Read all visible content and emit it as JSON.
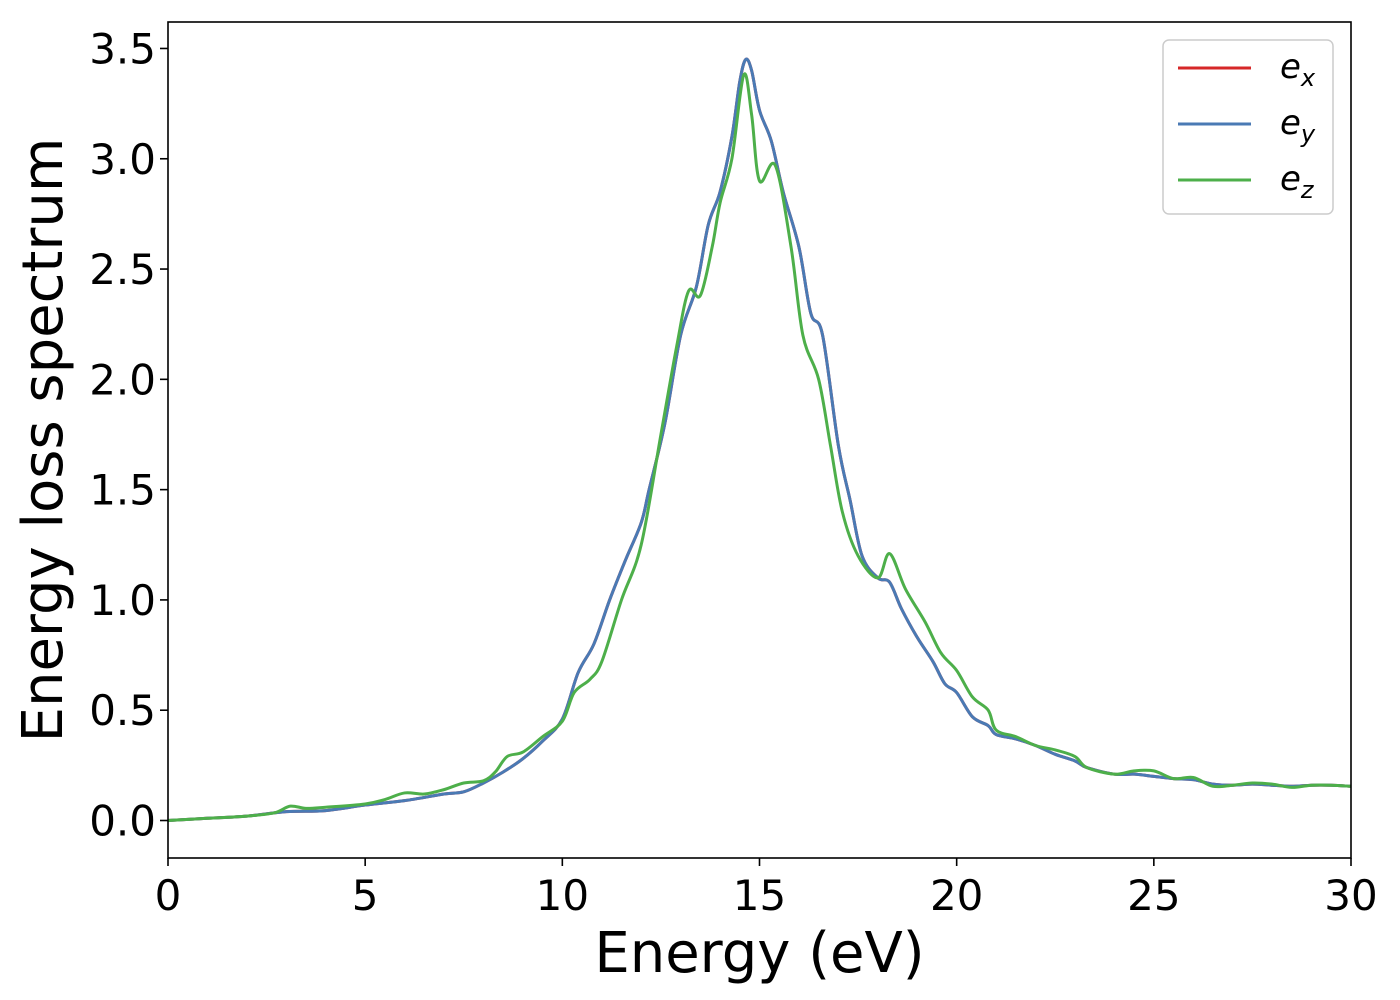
{
  "chart_data": {
    "type": "line",
    "title": "",
    "xlabel": "Energy (eV)",
    "ylabel": "Energy loss spectrum",
    "xlim": [
      0,
      30
    ],
    "ylim": [
      -0.17,
      3.62
    ],
    "xticks": [
      0,
      5,
      10,
      15,
      20,
      25,
      30
    ],
    "xtick_labels": [
      "0",
      "5",
      "10",
      "15",
      "20",
      "25",
      "30"
    ],
    "yticks": [
      0.0,
      0.5,
      1.0,
      1.5,
      2.0,
      2.5,
      3.0,
      3.5
    ],
    "ytick_labels": [
      "0.0",
      "0.5",
      "1.0",
      "1.5",
      "2.0",
      "2.5",
      "3.0",
      "3.5"
    ],
    "grid": false,
    "legend_position": "top-right",
    "series": [
      {
        "name": "e_x",
        "label_base": "e",
        "label_sub": "x",
        "color": "#d62728",
        "points": [
          [
            0,
            0
          ],
          [
            1,
            0.01
          ],
          [
            2,
            0.02
          ],
          [
            3,
            0.04
          ],
          [
            4,
            0.045
          ],
          [
            5,
            0.07
          ],
          [
            6,
            0.09
          ],
          [
            7,
            0.12
          ],
          [
            7.5,
            0.13
          ],
          [
            8,
            0.17
          ],
          [
            8.5,
            0.22
          ],
          [
            9,
            0.28
          ],
          [
            9.5,
            0.36
          ],
          [
            10,
            0.46
          ],
          [
            10.4,
            0.67
          ],
          [
            10.8,
            0.8
          ],
          [
            11.2,
            1.0
          ],
          [
            11.6,
            1.18
          ],
          [
            12,
            1.35
          ],
          [
            12.2,
            1.5
          ],
          [
            12.6,
            1.8
          ],
          [
            13,
            2.2
          ],
          [
            13.4,
            2.42
          ],
          [
            13.7,
            2.7
          ],
          [
            14,
            2.85
          ],
          [
            14.3,
            3.1
          ],
          [
            14.5,
            3.35
          ],
          [
            14.65,
            3.45
          ],
          [
            14.8,
            3.4
          ],
          [
            15,
            3.22
          ],
          [
            15.3,
            3.08
          ],
          [
            15.6,
            2.85
          ],
          [
            16,
            2.6
          ],
          [
            16.3,
            2.3
          ],
          [
            16.6,
            2.2
          ],
          [
            17,
            1.7
          ],
          [
            17.3,
            1.45
          ],
          [
            17.6,
            1.2
          ],
          [
            18,
            1.1
          ],
          [
            18.3,
            1.08
          ],
          [
            18.6,
            0.96
          ],
          [
            19,
            0.83
          ],
          [
            19.4,
            0.72
          ],
          [
            19.7,
            0.62
          ],
          [
            20,
            0.58
          ],
          [
            20.4,
            0.47
          ],
          [
            20.8,
            0.43
          ],
          [
            21,
            0.39
          ],
          [
            21.5,
            0.37
          ],
          [
            22,
            0.34
          ],
          [
            22.5,
            0.3
          ],
          [
            23,
            0.27
          ],
          [
            23.3,
            0.24
          ],
          [
            24,
            0.21
          ],
          [
            24.5,
            0.21
          ],
          [
            25,
            0.2
          ],
          [
            25.5,
            0.19
          ],
          [
            26,
            0.185
          ],
          [
            26.5,
            0.165
          ],
          [
            27,
            0.16
          ],
          [
            27.5,
            0.165
          ],
          [
            28,
            0.16
          ],
          [
            28.5,
            0.155
          ],
          [
            29,
            0.16
          ],
          [
            29.5,
            0.16
          ],
          [
            30,
            0.155
          ]
        ]
      },
      {
        "name": "e_y",
        "label_base": "e",
        "label_sub": "y",
        "color": "#4a7ab4",
        "points": [
          [
            0,
            0
          ],
          [
            1,
            0.01
          ],
          [
            2,
            0.02
          ],
          [
            3,
            0.04
          ],
          [
            4,
            0.045
          ],
          [
            5,
            0.07
          ],
          [
            6,
            0.09
          ],
          [
            7,
            0.12
          ],
          [
            7.5,
            0.13
          ],
          [
            8,
            0.17
          ],
          [
            8.5,
            0.22
          ],
          [
            9,
            0.28
          ],
          [
            9.5,
            0.36
          ],
          [
            10,
            0.46
          ],
          [
            10.4,
            0.67
          ],
          [
            10.8,
            0.8
          ],
          [
            11.2,
            1.0
          ],
          [
            11.6,
            1.18
          ],
          [
            12,
            1.35
          ],
          [
            12.2,
            1.5
          ],
          [
            12.6,
            1.8
          ],
          [
            13,
            2.2
          ],
          [
            13.4,
            2.42
          ],
          [
            13.7,
            2.7
          ],
          [
            14,
            2.85
          ],
          [
            14.3,
            3.1
          ],
          [
            14.5,
            3.35
          ],
          [
            14.65,
            3.45
          ],
          [
            14.8,
            3.4
          ],
          [
            15,
            3.22
          ],
          [
            15.3,
            3.08
          ],
          [
            15.6,
            2.85
          ],
          [
            16,
            2.6
          ],
          [
            16.3,
            2.3
          ],
          [
            16.6,
            2.2
          ],
          [
            17,
            1.7
          ],
          [
            17.3,
            1.45
          ],
          [
            17.6,
            1.2
          ],
          [
            18,
            1.1
          ],
          [
            18.3,
            1.08
          ],
          [
            18.6,
            0.96
          ],
          [
            19,
            0.83
          ],
          [
            19.4,
            0.72
          ],
          [
            19.7,
            0.62
          ],
          [
            20,
            0.58
          ],
          [
            20.4,
            0.47
          ],
          [
            20.8,
            0.43
          ],
          [
            21,
            0.39
          ],
          [
            21.5,
            0.37
          ],
          [
            22,
            0.34
          ],
          [
            22.5,
            0.3
          ],
          [
            23,
            0.27
          ],
          [
            23.3,
            0.24
          ],
          [
            24,
            0.21
          ],
          [
            24.5,
            0.21
          ],
          [
            25,
            0.2
          ],
          [
            25.5,
            0.19
          ],
          [
            26,
            0.185
          ],
          [
            26.5,
            0.165
          ],
          [
            27,
            0.16
          ],
          [
            27.5,
            0.165
          ],
          [
            28,
            0.16
          ],
          [
            28.5,
            0.155
          ],
          [
            29,
            0.16
          ],
          [
            29.5,
            0.16
          ],
          [
            30,
            0.155
          ]
        ]
      },
      {
        "name": "e_z",
        "label_base": "e",
        "label_sub": "z",
        "color": "#4daf4a",
        "points": [
          [
            0,
            0
          ],
          [
            1,
            0.01
          ],
          [
            2,
            0.02
          ],
          [
            2.7,
            0.035
          ],
          [
            3.1,
            0.065
          ],
          [
            3.5,
            0.055
          ],
          [
            4,
            0.06
          ],
          [
            5,
            0.075
          ],
          [
            5.5,
            0.095
          ],
          [
            6,
            0.125
          ],
          [
            6.5,
            0.12
          ],
          [
            7,
            0.14
          ],
          [
            7.5,
            0.17
          ],
          [
            8,
            0.18
          ],
          [
            8.3,
            0.22
          ],
          [
            8.6,
            0.29
          ],
          [
            9,
            0.31
          ],
          [
            9.5,
            0.38
          ],
          [
            10,
            0.45
          ],
          [
            10.3,
            0.58
          ],
          [
            10.7,
            0.64
          ],
          [
            11,
            0.72
          ],
          [
            11.5,
            1.0
          ],
          [
            12,
            1.25
          ],
          [
            12.5,
            1.75
          ],
          [
            12.9,
            2.15
          ],
          [
            13.2,
            2.4
          ],
          [
            13.5,
            2.38
          ],
          [
            13.8,
            2.6
          ],
          [
            14,
            2.8
          ],
          [
            14.3,
            3.0
          ],
          [
            14.6,
            3.38
          ],
          [
            14.8,
            3.2
          ],
          [
            15,
            2.9
          ],
          [
            15.4,
            2.97
          ],
          [
            15.8,
            2.6
          ],
          [
            16.1,
            2.2
          ],
          [
            16.5,
            2.0
          ],
          [
            16.8,
            1.7
          ],
          [
            17.1,
            1.4
          ],
          [
            17.5,
            1.2
          ],
          [
            18,
            1.1
          ],
          [
            18.3,
            1.21
          ],
          [
            18.7,
            1.05
          ],
          [
            19.2,
            0.9
          ],
          [
            19.6,
            0.76
          ],
          [
            20,
            0.68
          ],
          [
            20.4,
            0.56
          ],
          [
            20.8,
            0.5
          ],
          [
            21,
            0.41
          ],
          [
            21.5,
            0.38
          ],
          [
            22,
            0.34
          ],
          [
            22.5,
            0.32
          ],
          [
            23,
            0.29
          ],
          [
            23.3,
            0.24
          ],
          [
            24,
            0.21
          ],
          [
            24.5,
            0.225
          ],
          [
            25,
            0.225
          ],
          [
            25.5,
            0.19
          ],
          [
            26,
            0.195
          ],
          [
            26.5,
            0.155
          ],
          [
            27,
            0.16
          ],
          [
            27.5,
            0.17
          ],
          [
            28,
            0.165
          ],
          [
            28.5,
            0.15
          ],
          [
            29,
            0.16
          ],
          [
            29.5,
            0.16
          ],
          [
            30,
            0.155
          ]
        ]
      }
    ]
  }
}
